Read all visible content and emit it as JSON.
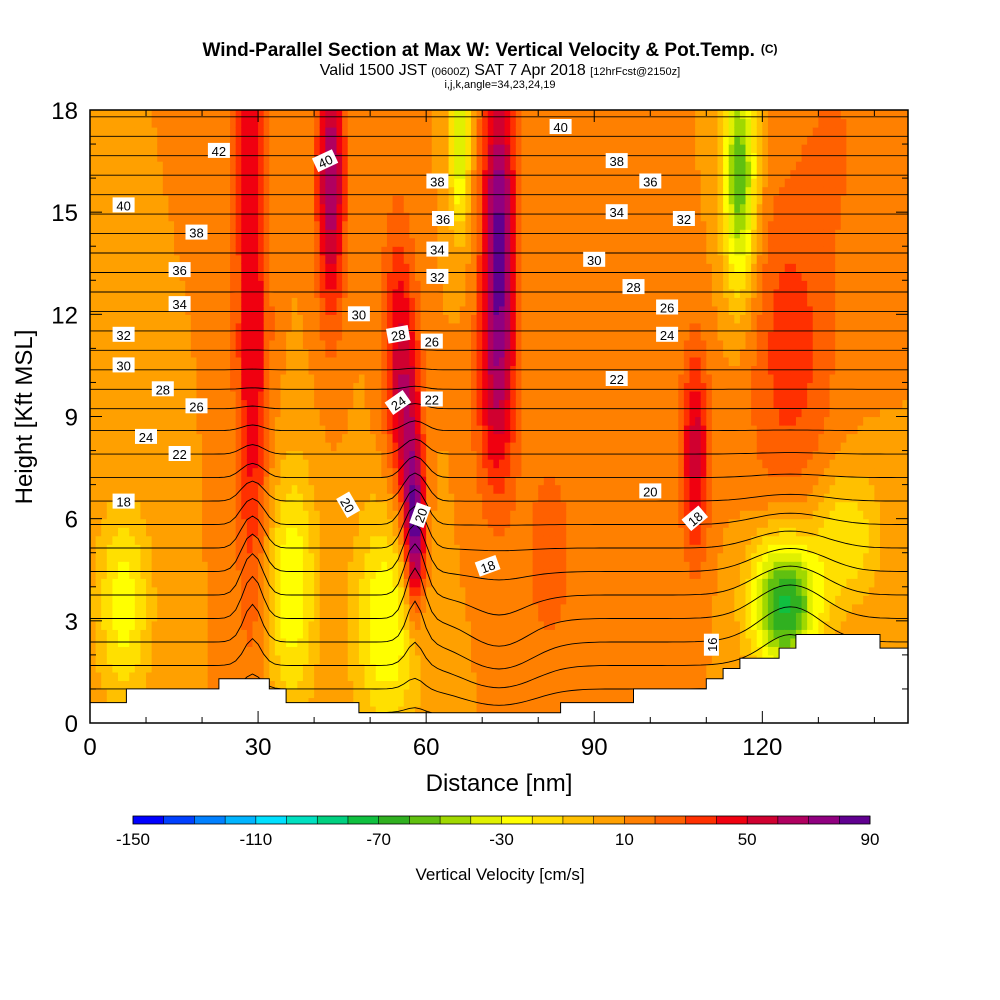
{
  "header": {
    "title_main": "Wind-Parallel Section at Max W: Vertical Velocity & Pot.Temp.",
    "title_units": "(C)",
    "valid_pre": "Valid 1500 JST ",
    "valid_utc": "(0600Z)",
    "valid_date": " SAT 7 Apr 2018 ",
    "valid_fcst": "[12hrFcst@2150z]",
    "indices": "i,j,k,angle=34,23,24,19"
  },
  "axes": {
    "xlabel": "Distance [nm]",
    "ylabel": "Height [Kft MSL]",
    "xticks": [
      "0",
      "30",
      "60",
      "90",
      "120"
    ],
    "yticks": [
      "0",
      "3",
      "6",
      "9",
      "12",
      "15",
      "18"
    ]
  },
  "colorbar": {
    "label": "Vertical Velocity [cm/s]",
    "ticks": [
      "-150",
      "-110",
      "-70",
      "-30",
      "10",
      "50",
      "90"
    ]
  },
  "colors": {
    "scale": [
      "#0000ff",
      "#0040ff",
      "#0080ff",
      "#00b4ff",
      "#00e0ff",
      "#00e0c0",
      "#00d080",
      "#10c040",
      "#30b020",
      "#60c010",
      "#a0d800",
      "#e0f000",
      "#ffff00",
      "#ffe000",
      "#ffc000",
      "#ffa000",
      "#ff8000",
      "#ff6000",
      "#ff3000",
      "#f00010",
      "#d00030",
      "#b00060",
      "#900080",
      "#600090"
    ],
    "contour": "#000000",
    "terrain": "#ffffff"
  },
  "chart_data": {
    "type": "heatmap",
    "x_range": [
      0,
      146
    ],
    "y_range": [
      0,
      18
    ],
    "x_ticks": [
      0,
      30,
      60,
      90,
      120
    ],
    "y_ticks": [
      0,
      3,
      6,
      9,
      12,
      15,
      18
    ],
    "x_minor_step": 10,
    "y_minor_step": 1,
    "color_range": [
      -150,
      90
    ],
    "color_levels": [
      -150,
      -140,
      -130,
      -120,
      -110,
      -100,
      -90,
      -80,
      -70,
      -60,
      -50,
      -40,
      -30,
      -20,
      -10,
      0,
      10,
      20,
      30,
      40,
      50,
      60,
      70,
      80,
      90
    ],
    "vertical_velocity_features": [
      {
        "x": 29,
        "y": 11,
        "sx": 3.0,
        "sy": 8.0,
        "value": 50
      },
      {
        "x": 28,
        "y": 18,
        "sx": 3.5,
        "sy": 3.0,
        "value": 30
      },
      {
        "x": 43,
        "y": 16,
        "sx": 2.5,
        "sy": 4.0,
        "value": 70
      },
      {
        "x": 55,
        "y": 11,
        "sx": 3.0,
        "sy": 4.0,
        "value": 45
      },
      {
        "x": 58,
        "y": 5.5,
        "sx": 1.8,
        "sy": 2.2,
        "value": 85
      },
      {
        "x": 57,
        "y": 8.5,
        "sx": 2.5,
        "sy": 3.0,
        "value": 45
      },
      {
        "x": 73,
        "y": 14,
        "sx": 3.0,
        "sy": 5.0,
        "value": 85
      },
      {
        "x": 72,
        "y": 9,
        "sx": 4.0,
        "sy": 3.0,
        "value": 30
      },
      {
        "x": 108,
        "y": 8,
        "sx": 2.5,
        "sy": 3.0,
        "value": 55
      },
      {
        "x": 125,
        "y": 11,
        "sx": 8.0,
        "sy": 5.0,
        "value": 35
      },
      {
        "x": 133,
        "y": 17,
        "sx": 6.0,
        "sy": 3.0,
        "value": 20
      },
      {
        "x": 66,
        "y": 17,
        "sx": 1.8,
        "sy": 2.5,
        "value": -40
      },
      {
        "x": 116,
        "y": 16,
        "sx": 3.0,
        "sy": 3.5,
        "value": -60
      },
      {
        "x": 124,
        "y": 3.5,
        "sx": 6.0,
        "sy": 2.0,
        "value": -75
      },
      {
        "x": 36,
        "y": 4,
        "sx": 4.5,
        "sy": 3.5,
        "value": -30
      },
      {
        "x": 6,
        "y": 3.5,
        "sx": 5.0,
        "sy": 3.0,
        "value": -25
      },
      {
        "x": 53,
        "y": 3,
        "sx": 6.0,
        "sy": 3.5,
        "value": -30
      },
      {
        "x": 82,
        "y": 5,
        "sx": 5.0,
        "sy": 3.5,
        "value": 25
      },
      {
        "x": 135,
        "y": 5.5,
        "sx": 6.0,
        "sy": 2.0,
        "value": -20
      }
    ],
    "vertical_velocity_background": 10,
    "theta_contours": {
      "interval_c": 1,
      "levels_surface": [
        16,
        23
      ],
      "labeled": [
        {
          "value": "42",
          "x": 23,
          "y": 16.8,
          "angle": 0
        },
        {
          "value": "40",
          "x": 6,
          "y": 15.2,
          "angle": 0
        },
        {
          "value": "40",
          "x": 42,
          "y": 16.5,
          "angle": -25
        },
        {
          "value": "40",
          "x": 84,
          "y": 17.5,
          "angle": 0
        },
        {
          "value": "38",
          "x": 19,
          "y": 14.4,
          "angle": 0
        },
        {
          "value": "38",
          "x": 62,
          "y": 15.9,
          "angle": 0
        },
        {
          "value": "38",
          "x": 94,
          "y": 16.5,
          "angle": 0
        },
        {
          "value": "36",
          "x": 16,
          "y": 13.3,
          "angle": 0
        },
        {
          "value": "36",
          "x": 63,
          "y": 14.8,
          "angle": 0
        },
        {
          "value": "36",
          "x": 100,
          "y": 15.9,
          "angle": 0
        },
        {
          "value": "34",
          "x": 16,
          "y": 12.3,
          "angle": 0
        },
        {
          "value": "34",
          "x": 62,
          "y": 13.9,
          "angle": 0
        },
        {
          "value": "34",
          "x": 94,
          "y": 15.0,
          "angle": 0
        },
        {
          "value": "32",
          "x": 6,
          "y": 11.4,
          "angle": 0
        },
        {
          "value": "32",
          "x": 62,
          "y": 13.1,
          "angle": 0
        },
        {
          "value": "32",
          "x": 106,
          "y": 14.8,
          "angle": 0
        },
        {
          "value": "30",
          "x": 6,
          "y": 10.5,
          "angle": 0
        },
        {
          "value": "30",
          "x": 48,
          "y": 12.0,
          "angle": 0
        },
        {
          "value": "30",
          "x": 90,
          "y": 13.6,
          "angle": 0
        },
        {
          "value": "28",
          "x": 13,
          "y": 9.8,
          "angle": 0
        },
        {
          "value": "28",
          "x": 55,
          "y": 11.4,
          "angle": -10
        },
        {
          "value": "28",
          "x": 97,
          "y": 12.8,
          "angle": 0
        },
        {
          "value": "26",
          "x": 19,
          "y": 9.3,
          "angle": 0
        },
        {
          "value": "26",
          "x": 61,
          "y": 11.2,
          "angle": 0
        },
        {
          "value": "26",
          "x": 103,
          "y": 12.2,
          "angle": 0
        },
        {
          "value": "24",
          "x": 10,
          "y": 8.4,
          "angle": 0
        },
        {
          "value": "24",
          "x": 55,
          "y": 9.4,
          "angle": -35
        },
        {
          "value": "24",
          "x": 103,
          "y": 11.4,
          "angle": 0
        },
        {
          "value": "22",
          "x": 16,
          "y": 7.9,
          "angle": 0
        },
        {
          "value": "22",
          "x": 61,
          "y": 9.5,
          "angle": 0
        },
        {
          "value": "22",
          "x": 94,
          "y": 10.1,
          "angle": 0
        },
        {
          "value": "20",
          "x": 46,
          "y": 6.4,
          "angle": 60
        },
        {
          "value": "20",
          "x": 59,
          "y": 6.1,
          "angle": -70
        },
        {
          "value": "20",
          "x": 100,
          "y": 6.8,
          "angle": 0
        },
        {
          "value": "18",
          "x": 6,
          "y": 6.5,
          "angle": 0
        },
        {
          "value": "18",
          "x": 71,
          "y": 4.6,
          "angle": -20
        },
        {
          "value": "18",
          "x": 108,
          "y": 6.0,
          "angle": -40
        },
        {
          "value": "16",
          "x": 111,
          "y": 2.3,
          "angle": -90
        }
      ]
    },
    "terrain_kft": [
      {
        "x": 0,
        "h": 0.6
      },
      {
        "x": 6.5,
        "h": 0.6
      },
      {
        "x": 6.5,
        "h": 1.0
      },
      {
        "x": 23,
        "h": 1.0
      },
      {
        "x": 23,
        "h": 1.3
      },
      {
        "x": 32,
        "h": 1.3
      },
      {
        "x": 32,
        "h": 1.0
      },
      {
        "x": 35,
        "h": 1.0
      },
      {
        "x": 35,
        "h": 0.6
      },
      {
        "x": 48,
        "h": 0.6
      },
      {
        "x": 48,
        "h": 0.3
      },
      {
        "x": 67,
        "h": 0.3
      },
      {
        "x": 67,
        "h": 0.3
      },
      {
        "x": 84,
        "h": 0.3
      },
      {
        "x": 84,
        "h": 0.6
      },
      {
        "x": 97,
        "h": 0.6
      },
      {
        "x": 97,
        "h": 1.0
      },
      {
        "x": 110,
        "h": 1.0
      },
      {
        "x": 110,
        "h": 1.3
      },
      {
        "x": 113,
        "h": 1.3
      },
      {
        "x": 113,
        "h": 1.6
      },
      {
        "x": 116,
        "h": 1.6
      },
      {
        "x": 116,
        "h": 1.9
      },
      {
        "x": 123,
        "h": 1.9
      },
      {
        "x": 123,
        "h": 2.2
      },
      {
        "x": 126,
        "h": 2.2
      },
      {
        "x": 126,
        "h": 2.6
      },
      {
        "x": 141,
        "h": 2.6
      },
      {
        "x": 141,
        "h": 2.2
      },
      {
        "x": 146,
        "h": 2.2
      }
    ]
  }
}
